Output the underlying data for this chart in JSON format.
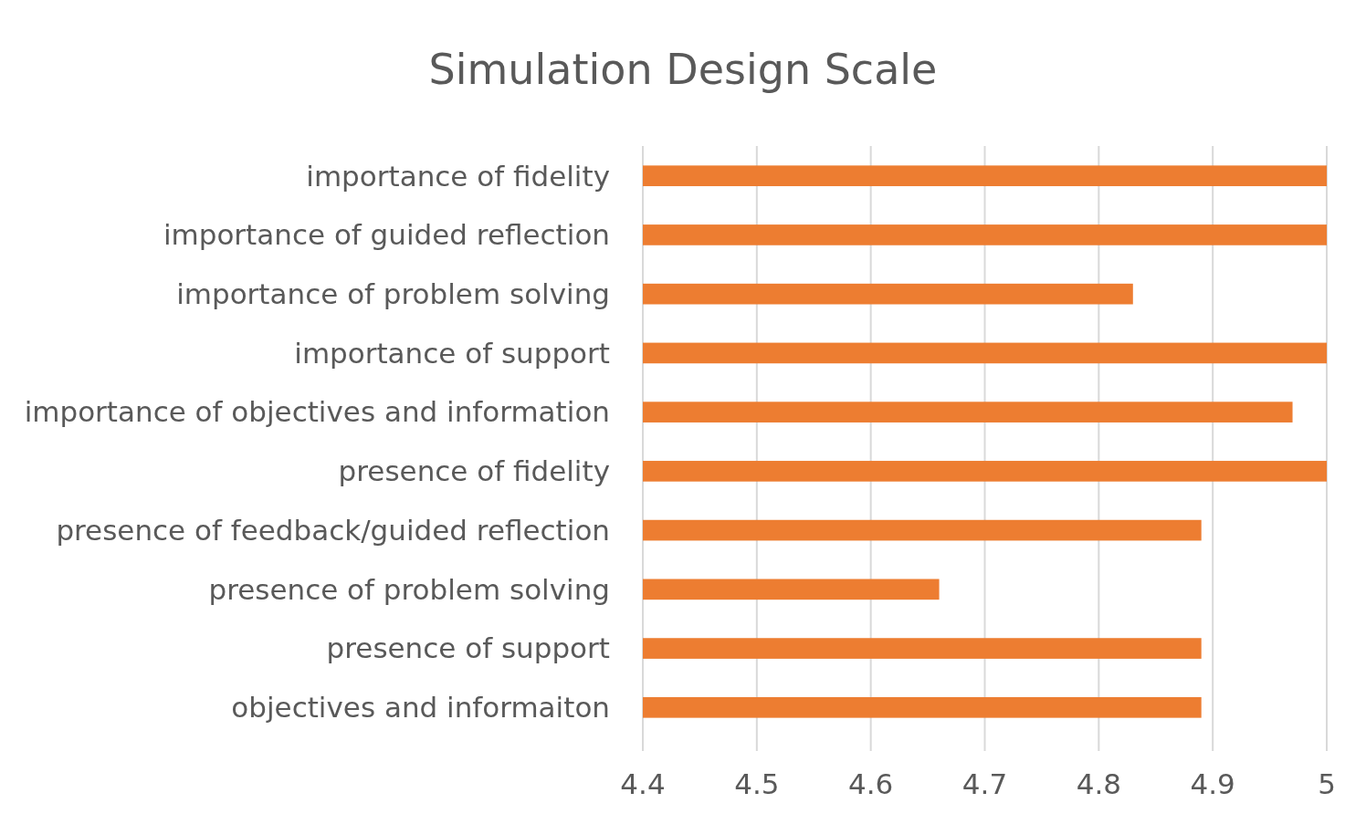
{
  "chart_data": {
    "type": "bar",
    "orientation": "horizontal",
    "title": "Simulation Design Scale",
    "categories": [
      "importance of fidelity",
      "importance of guided reflection",
      "importance of problem solving",
      "importance of support",
      "importance of objectives and information",
      "presence of fidelity",
      "presence of feedback/guided reflection",
      "presence of problem solving",
      "presence of support",
      "objectives and informaiton"
    ],
    "values": [
      5,
      5,
      4.83,
      5,
      4.97,
      5,
      4.89,
      4.66,
      4.89,
      4.89
    ],
    "color": "#ed7d31",
    "xlim": [
      4.4,
      5
    ],
    "xticks": [
      4.4,
      4.5,
      4.6,
      4.7,
      4.8,
      4.9,
      5
    ],
    "grid": "x"
  }
}
